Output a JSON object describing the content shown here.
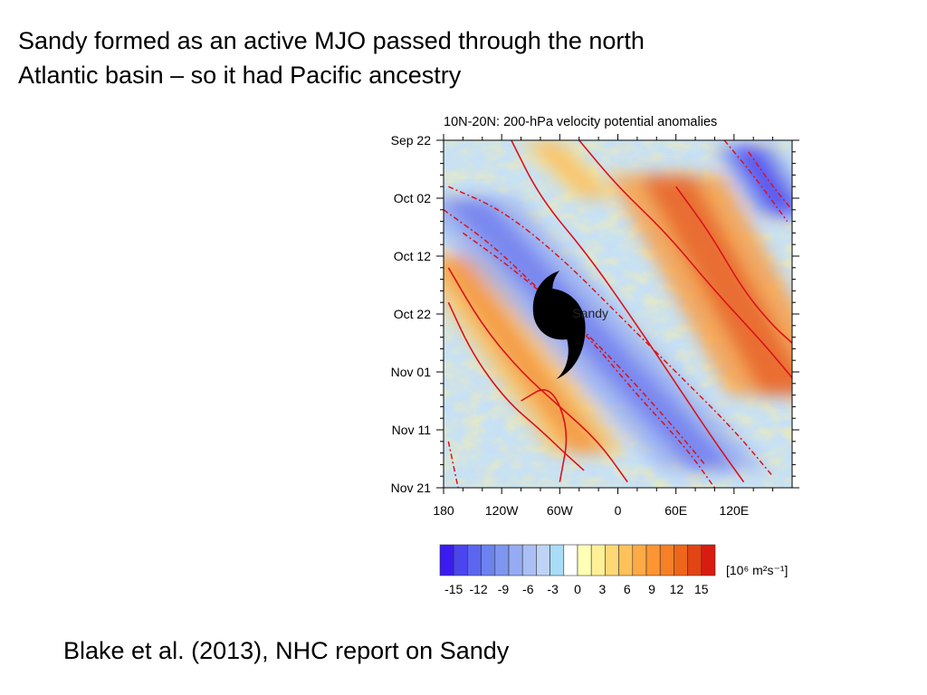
{
  "slide": {
    "title_lines": [
      "Sandy formed as an active MJO passed through the north",
      "Atlantic basin – so it had Pacific ancestry"
    ],
    "citation": "Blake et al. (2013), NHC report on Sandy"
  },
  "chart_data": {
    "type": "heatmap",
    "title": "10N-20N: 200-hPa velocity potential anomalies",
    "x_ticks": [
      "180",
      "120W",
      "60W",
      "0",
      "60E",
      "120E"
    ],
    "x_tick_degrees": [
      -180,
      -120,
      -60,
      0,
      60,
      120
    ],
    "xlim_degrees": [
      -180,
      180
    ],
    "y_ticks": [
      "Sep 22",
      "Oct 02",
      "Oct 12",
      "Oct 22",
      "Nov 01",
      "Nov 11",
      "Nov 21"
    ],
    "ylim": [
      "2012-09-22",
      "2012-11-21"
    ],
    "colorbar": {
      "unit_label": "[10⁶ m²s⁻¹]",
      "tick_labels": [
        "-15",
        "-12",
        "-9",
        "-6",
        "-3",
        "0",
        "3",
        "6",
        "9",
        "12",
        "15"
      ],
      "colors": [
        "#3a1cf0",
        "#4a45ef",
        "#5b66ee",
        "#6b82ef",
        "#7f96f1",
        "#95abf3",
        "#aabff4",
        "#bfd3f6",
        "#a9dcf6",
        "#ffffff",
        "#ffffb6",
        "#fff098",
        "#ffd876",
        "#ffc15a",
        "#ffaa44",
        "#fd9533",
        "#f77f25",
        "#ee661a",
        "#e34414",
        "#d91c10"
      ]
    },
    "shading_bands": [
      {
        "sign": "positive",
        "start": [
          -175,
          "2012-10-12"
        ],
        "end": [
          -30,
          "2012-11-15"
        ],
        "width_deg": 80,
        "peak": 6
      },
      {
        "sign": "negative",
        "start": [
          -160,
          "2012-10-02"
        ],
        "end": [
          100,
          "2012-11-18"
        ],
        "width_deg": 110,
        "peak": -7
      },
      {
        "sign": "positive",
        "start": [
          50,
          "2012-09-28"
        ],
        "end": [
          175,
          "2012-11-05"
        ],
        "width_deg": 120,
        "peak": 8
      },
      {
        "sign": "negative",
        "start": [
          130,
          "2012-09-23"
        ],
        "end": [
          175,
          "2012-10-05"
        ],
        "width_deg": 60,
        "peak": -10
      },
      {
        "sign": "positive",
        "start": [
          -80,
          "2012-09-22"
        ],
        "end": [
          -20,
          "2012-10-02"
        ],
        "width_deg": 50,
        "peak": 4
      }
    ],
    "contours_solid_positive": [
      [
        [
          -175,
          "2012-10-20"
        ],
        [
          -150,
          "2012-10-29"
        ],
        [
          -115,
          "2012-11-06"
        ],
        [
          -80,
          "2012-11-11"
        ],
        [
          -55,
          "2012-11-15"
        ],
        [
          -35,
          "2012-11-18"
        ]
      ],
      [
        [
          -175,
          "2012-10-14"
        ],
        [
          -140,
          "2012-10-24"
        ],
        [
          -100,
          "2012-11-01"
        ],
        [
          -60,
          "2012-11-07"
        ],
        [
          -20,
          "2012-11-13"
        ],
        [
          10,
          "2012-11-20"
        ]
      ],
      [
        [
          -110,
          "2012-09-22"
        ],
        [
          -80,
          "2012-10-02"
        ],
        [
          -30,
          "2012-10-12"
        ],
        [
          20,
          "2012-10-24"
        ],
        [
          60,
          "2012-11-03"
        ],
        [
          100,
          "2012-11-13"
        ],
        [
          130,
          "2012-11-20"
        ]
      ],
      [
        [
          -40,
          "2012-09-22"
        ],
        [
          0,
          "2012-09-30"
        ],
        [
          50,
          "2012-10-08"
        ],
        [
          100,
          "2012-10-18"
        ],
        [
          150,
          "2012-10-27"
        ],
        [
          180,
          "2012-11-02"
        ]
      ],
      [
        [
          60,
          "2012-09-30"
        ],
        [
          95,
          "2012-10-08"
        ],
        [
          130,
          "2012-10-18"
        ],
        [
          160,
          "2012-10-24"
        ],
        [
          180,
          "2012-10-27"
        ]
      ],
      [
        [
          -100,
          "2012-11-06"
        ],
        [
          -70,
          "2012-11-03"
        ],
        [
          -50,
          "2012-11-11"
        ],
        [
          -60,
          "2012-11-20"
        ]
      ]
    ],
    "contours_dashed_negative": [
      [
        [
          -180,
          "2012-10-04"
        ],
        [
          -130,
          "2012-10-10"
        ],
        [
          -80,
          "2012-10-18"
        ],
        [
          -30,
          "2012-10-26"
        ],
        [
          20,
          "2012-11-05"
        ],
        [
          70,
          "2012-11-14"
        ],
        [
          100,
          "2012-11-21"
        ]
      ],
      [
        [
          -175,
          "2012-09-30"
        ],
        [
          -120,
          "2012-10-04"
        ],
        [
          -60,
          "2012-10-12"
        ],
        [
          0,
          "2012-10-22"
        ],
        [
          60,
          "2012-11-01"
        ],
        [
          120,
          "2012-11-11"
        ],
        [
          160,
          "2012-11-19"
        ]
      ],
      [
        [
          -160,
          "2012-10-08"
        ],
        [
          -110,
          "2012-10-14"
        ],
        [
          -60,
          "2012-10-21"
        ],
        [
          -10,
          "2012-10-29"
        ],
        [
          50,
          "2012-11-09"
        ],
        [
          90,
          "2012-11-17"
        ]
      ],
      [
        [
          110,
          "2012-09-22"
        ],
        [
          140,
          "2012-09-28"
        ],
        [
          175,
          "2012-10-06"
        ]
      ],
      [
        [
          135,
          "2012-09-24"
        ],
        [
          160,
          "2012-09-30"
        ],
        [
          180,
          "2012-10-04"
        ]
      ],
      [
        [
          -175,
          "2012-11-13"
        ],
        [
          -165,
          "2012-11-21"
        ]
      ]
    ],
    "storm_marker": {
      "label": "Sandy",
      "position": [
        -60,
        "2012-10-22"
      ]
    }
  }
}
